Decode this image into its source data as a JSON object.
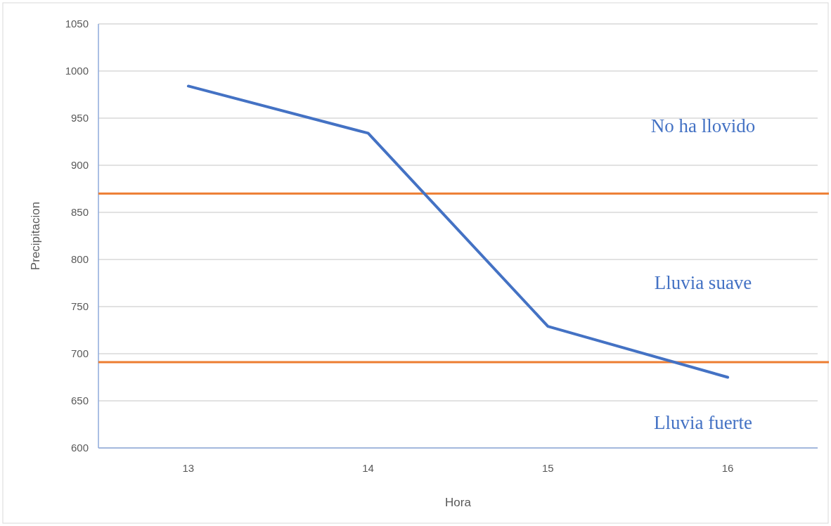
{
  "chart_data": {
    "type": "line",
    "xlabel": "Hora",
    "ylabel": "Precipitacion",
    "categories": [
      "13",
      "14",
      "15",
      "16"
    ],
    "series": [
      {
        "color": "#4472c4",
        "values": [
          984,
          934,
          729,
          675
        ]
      }
    ],
    "ylim": [
      600,
      1050
    ],
    "yticks": [
      600,
      650,
      700,
      750,
      800,
      850,
      900,
      950,
      1000,
      1050
    ],
    "grid": "y",
    "ref_lines": [
      {
        "axis": "y",
        "value": 870,
        "color": "#ed7d31"
      },
      {
        "axis": "y",
        "value": 691,
        "color": "#ed7d31"
      }
    ],
    "annotations": [
      "No ha llovido",
      "Lluvia suave",
      "Lluvia fuerte"
    ]
  }
}
